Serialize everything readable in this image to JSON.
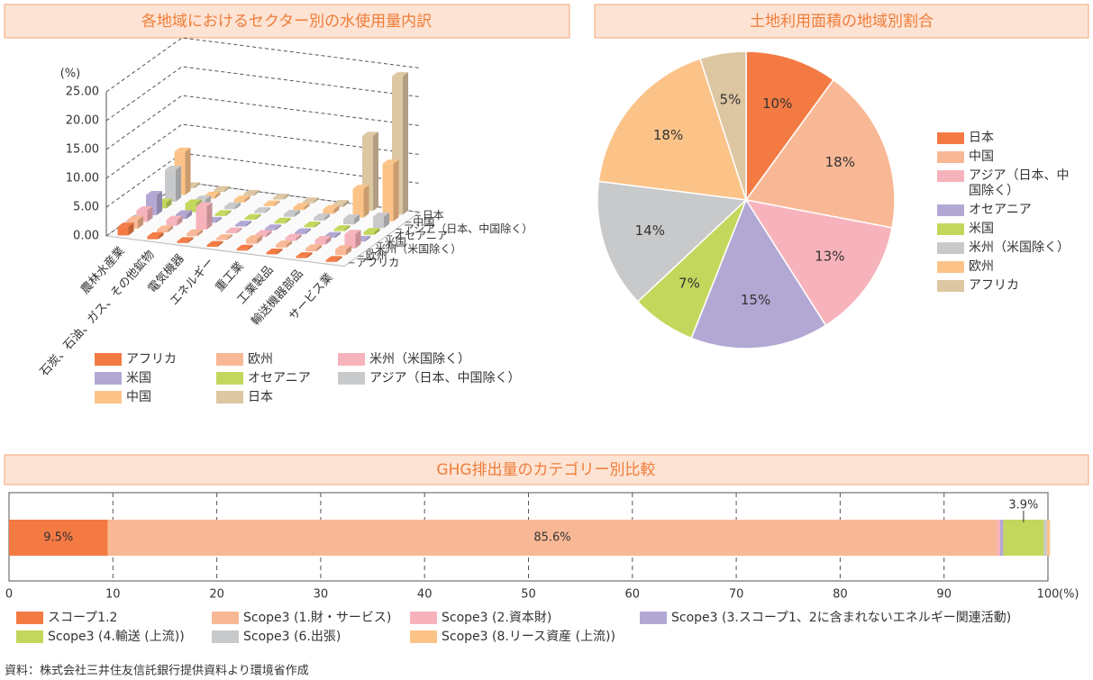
{
  "chart_data": [
    {
      "type": "bar3d",
      "title": "各地域におけるセクター別の水使用量内訳",
      "y_unit": "(%)",
      "categories": [
        "農林水産業",
        "石炭、石油、ガス、その他鉱物",
        "電気機器",
        "エネルギー",
        "重工業",
        "工業製品",
        "輸送機器部品",
        "サービス業"
      ],
      "series": [
        {
          "name": "アフリカ",
          "color": "#f47a44",
          "values": [
            1.5,
            0.5,
            0.3,
            0.3,
            0.3,
            0.3,
            0.3,
            0.3
          ]
        },
        {
          "name": "欧州",
          "color": "#f9b895",
          "values": [
            1.5,
            0.5,
            0.5,
            0.3,
            0.8,
            0.5,
            0.5,
            1
          ]
        },
        {
          "name": "米州（米国除く）",
          "color": "#f7b3bb",
          "values": [
            2,
            1,
            4,
            0.3,
            0.5,
            0.5,
            0.8,
            2.5
          ]
        },
        {
          "name": "米国",
          "color": "#b3a8d4",
          "values": [
            3.5,
            0.8,
            0.3,
            0.3,
            0.3,
            0.3,
            0.3,
            0.3
          ]
        },
        {
          "name": "オセアニア",
          "color": "#c4d75d",
          "values": [
            1,
            1.5,
            0.3,
            0.3,
            0.3,
            0.3,
            0.3,
            0.5
          ]
        },
        {
          "name": "アジア（日本、中国除く）",
          "color": "#c8c9ca",
          "values": [
            5.5,
            1,
            0.5,
            0.3,
            0.5,
            0.5,
            1,
            2
          ]
        },
        {
          "name": "中国",
          "color": "#fcc389",
          "values": [
            7.5,
            0.5,
            0.5,
            0.3,
            0.5,
            0.8,
            5,
            10
          ]
        },
        {
          "name": "日本",
          "color": "#ddc6a2",
          "values": [
            0.3,
            0.3,
            0.3,
            0.3,
            0.3,
            0.5,
            13,
            24
          ]
        }
      ],
      "ylim": [
        0,
        25
      ],
      "yticks": [
        {
          "value": 0,
          "label": "0.00"
        },
        {
          "value": 5,
          "label": "5.00"
        },
        {
          "value": 10,
          "label": "10.00"
        },
        {
          "value": 15,
          "label": "15.00"
        },
        {
          "value": 20,
          "label": "20.00"
        },
        {
          "value": 25,
          "label": "25.00"
        }
      ],
      "grid": true
    },
    {
      "type": "pie",
      "title": "土地利用面積の地域別割合",
      "categories": [
        "日本",
        "中国",
        "アジア（日本、中国除く）",
        "オセアニア",
        "米国",
        "米州（米国除く）",
        "欧州",
        "アフリカ"
      ],
      "values": [
        10,
        18,
        13,
        15,
        7,
        14,
        18,
        5
      ],
      "value_labels": [
        "10%",
        "18%",
        "13%",
        "15%",
        "7%",
        "14%",
        "18%",
        "5%"
      ],
      "colors": [
        "#f47a44",
        "#f9b895",
        "#f7b3bb",
        "#b3a8d4",
        "#c4d75d",
        "#c8c9ca",
        "#fcc389",
        "#ddc6a2"
      ]
    },
    {
      "type": "stacked_barh",
      "title": "GHG排出量のカテゴリー別比較",
      "x_unit": "(%)",
      "categories": [
        null
      ],
      "series": [
        {
          "name": "スコープ1.2",
          "color": "#f47a44",
          "values": [
            9.5
          ],
          "value_labels": [
            "9.5%"
          ]
        },
        {
          "name": "Scope3 (1.財・サービス)",
          "color": "#f9b895",
          "values": [
            85.6
          ],
          "value_labels": [
            "85.6%"
          ]
        },
        {
          "name": "Scope3 (2.資本財)",
          "color": "#f7b3bb",
          "values": [
            0.3
          ],
          "value_labels": [
            null
          ]
        },
        {
          "name": "Scope3 (3.スコープ1、2に含まれないエネルギー関連活動)",
          "color": "#b3a8d4",
          "values": [
            0.3
          ],
          "value_labels": [
            null
          ]
        },
        {
          "name": "Scope3 (4.輸送 (上流))",
          "color": "#c4d75d",
          "values": [
            3.9
          ],
          "value_labels": [
            "3.9%"
          ]
        },
        {
          "name": "Scope3 (6.出張)",
          "color": "#c8c9ca",
          "values": [
            0.3
          ],
          "value_labels": [
            null
          ]
        },
        {
          "name": "Scope3 (8.リース資産 (上流))",
          "color": "#fcc389",
          "values": [
            0.3
          ],
          "value_labels": [
            null
          ]
        }
      ],
      "xlim": [
        0,
        100
      ],
      "xticks": [
        0,
        10,
        20,
        30,
        40,
        50,
        60,
        70,
        80,
        90,
        100
      ],
      "grid": true
    }
  ],
  "source": "資料：株式会社三井住友信託銀行提供資料より環境省作成"
}
